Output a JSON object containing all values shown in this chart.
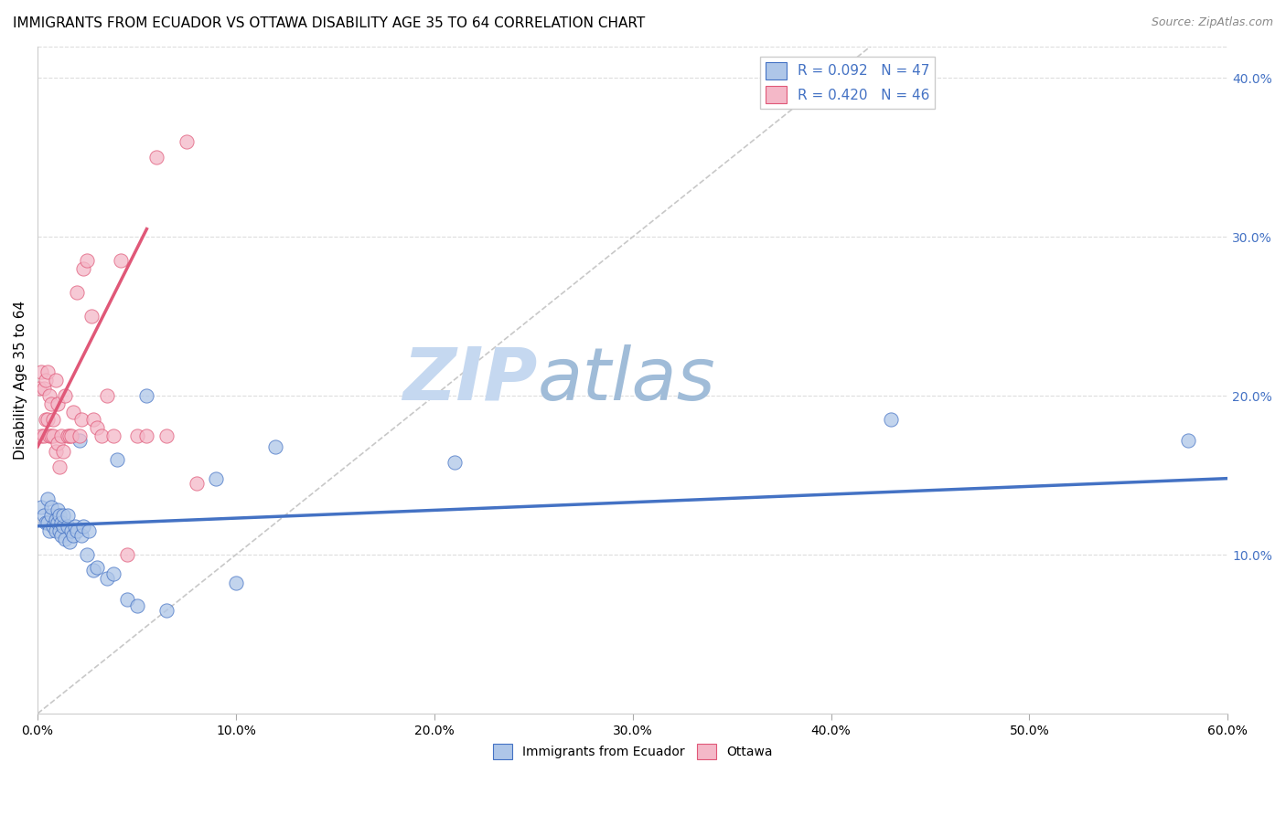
{
  "title": "IMMIGRANTS FROM ECUADOR VS OTTAWA DISABILITY AGE 35 TO 64 CORRELATION CHART",
  "source": "Source: ZipAtlas.com",
  "ylabel": "Disability Age 35 to 64",
  "xlabel_label1": "Immigrants from Ecuador",
  "xlabel_label2": "Ottawa",
  "legend_r1": "R = 0.092",
  "legend_n1": "N = 47",
  "legend_r2": "R = 0.420",
  "legend_n2": "N = 46",
  "xlim": [
    0.0,
    0.6
  ],
  "ylim": [
    0.0,
    0.42
  ],
  "xticks": [
    0.0,
    0.1,
    0.2,
    0.3,
    0.4,
    0.5,
    0.6
  ],
  "yticks_right": [
    0.1,
    0.2,
    0.3,
    0.4
  ],
  "color_blue": "#aec6e8",
  "color_pink": "#f4b8c8",
  "color_blue_line": "#4472c4",
  "color_pink_line": "#e05878",
  "color_diag_line": "#c8c8c8",
  "watermark_zip_color": "#c5d8f0",
  "watermark_atlas_color": "#a0bcd8",
  "blue_scatter_x": [
    0.002,
    0.003,
    0.004,
    0.005,
    0.005,
    0.006,
    0.007,
    0.007,
    0.008,
    0.009,
    0.009,
    0.01,
    0.01,
    0.011,
    0.011,
    0.012,
    0.012,
    0.013,
    0.013,
    0.014,
    0.015,
    0.015,
    0.016,
    0.017,
    0.018,
    0.019,
    0.02,
    0.021,
    0.022,
    0.023,
    0.025,
    0.026,
    0.028,
    0.03,
    0.035,
    0.038,
    0.04,
    0.045,
    0.05,
    0.055,
    0.065,
    0.09,
    0.1,
    0.12,
    0.21,
    0.43,
    0.58
  ],
  "blue_scatter_y": [
    0.13,
    0.125,
    0.12,
    0.12,
    0.135,
    0.115,
    0.125,
    0.13,
    0.118,
    0.122,
    0.115,
    0.12,
    0.128,
    0.115,
    0.125,
    0.112,
    0.12,
    0.118,
    0.125,
    0.11,
    0.118,
    0.125,
    0.108,
    0.115,
    0.112,
    0.118,
    0.115,
    0.172,
    0.112,
    0.118,
    0.1,
    0.115,
    0.09,
    0.092,
    0.085,
    0.088,
    0.16,
    0.072,
    0.068,
    0.2,
    0.065,
    0.148,
    0.082,
    0.168,
    0.158,
    0.185,
    0.172
  ],
  "pink_scatter_x": [
    0.001,
    0.002,
    0.002,
    0.003,
    0.003,
    0.004,
    0.004,
    0.005,
    0.005,
    0.006,
    0.006,
    0.007,
    0.007,
    0.008,
    0.008,
    0.009,
    0.009,
    0.01,
    0.01,
    0.011,
    0.012,
    0.013,
    0.014,
    0.015,
    0.016,
    0.017,
    0.018,
    0.02,
    0.021,
    0.022,
    0.023,
    0.025,
    0.027,
    0.028,
    0.03,
    0.032,
    0.035,
    0.038,
    0.042,
    0.045,
    0.05,
    0.055,
    0.06,
    0.065,
    0.075,
    0.08
  ],
  "pink_scatter_y": [
    0.205,
    0.175,
    0.215,
    0.175,
    0.205,
    0.185,
    0.21,
    0.185,
    0.215,
    0.175,
    0.2,
    0.175,
    0.195,
    0.175,
    0.185,
    0.165,
    0.21,
    0.17,
    0.195,
    0.155,
    0.175,
    0.165,
    0.2,
    0.175,
    0.175,
    0.175,
    0.19,
    0.265,
    0.175,
    0.185,
    0.28,
    0.285,
    0.25,
    0.185,
    0.18,
    0.175,
    0.2,
    0.175,
    0.285,
    0.1,
    0.175,
    0.175,
    0.35,
    0.175,
    0.36,
    0.145
  ],
  "blue_line_x": [
    0.0,
    0.6
  ],
  "blue_line_y": [
    0.118,
    0.148
  ],
  "pink_line_x": [
    0.0,
    0.055
  ],
  "pink_line_y": [
    0.168,
    0.305
  ],
  "diag_line_x": [
    0.0,
    0.42
  ],
  "diag_line_y": [
    0.0,
    0.42
  ]
}
